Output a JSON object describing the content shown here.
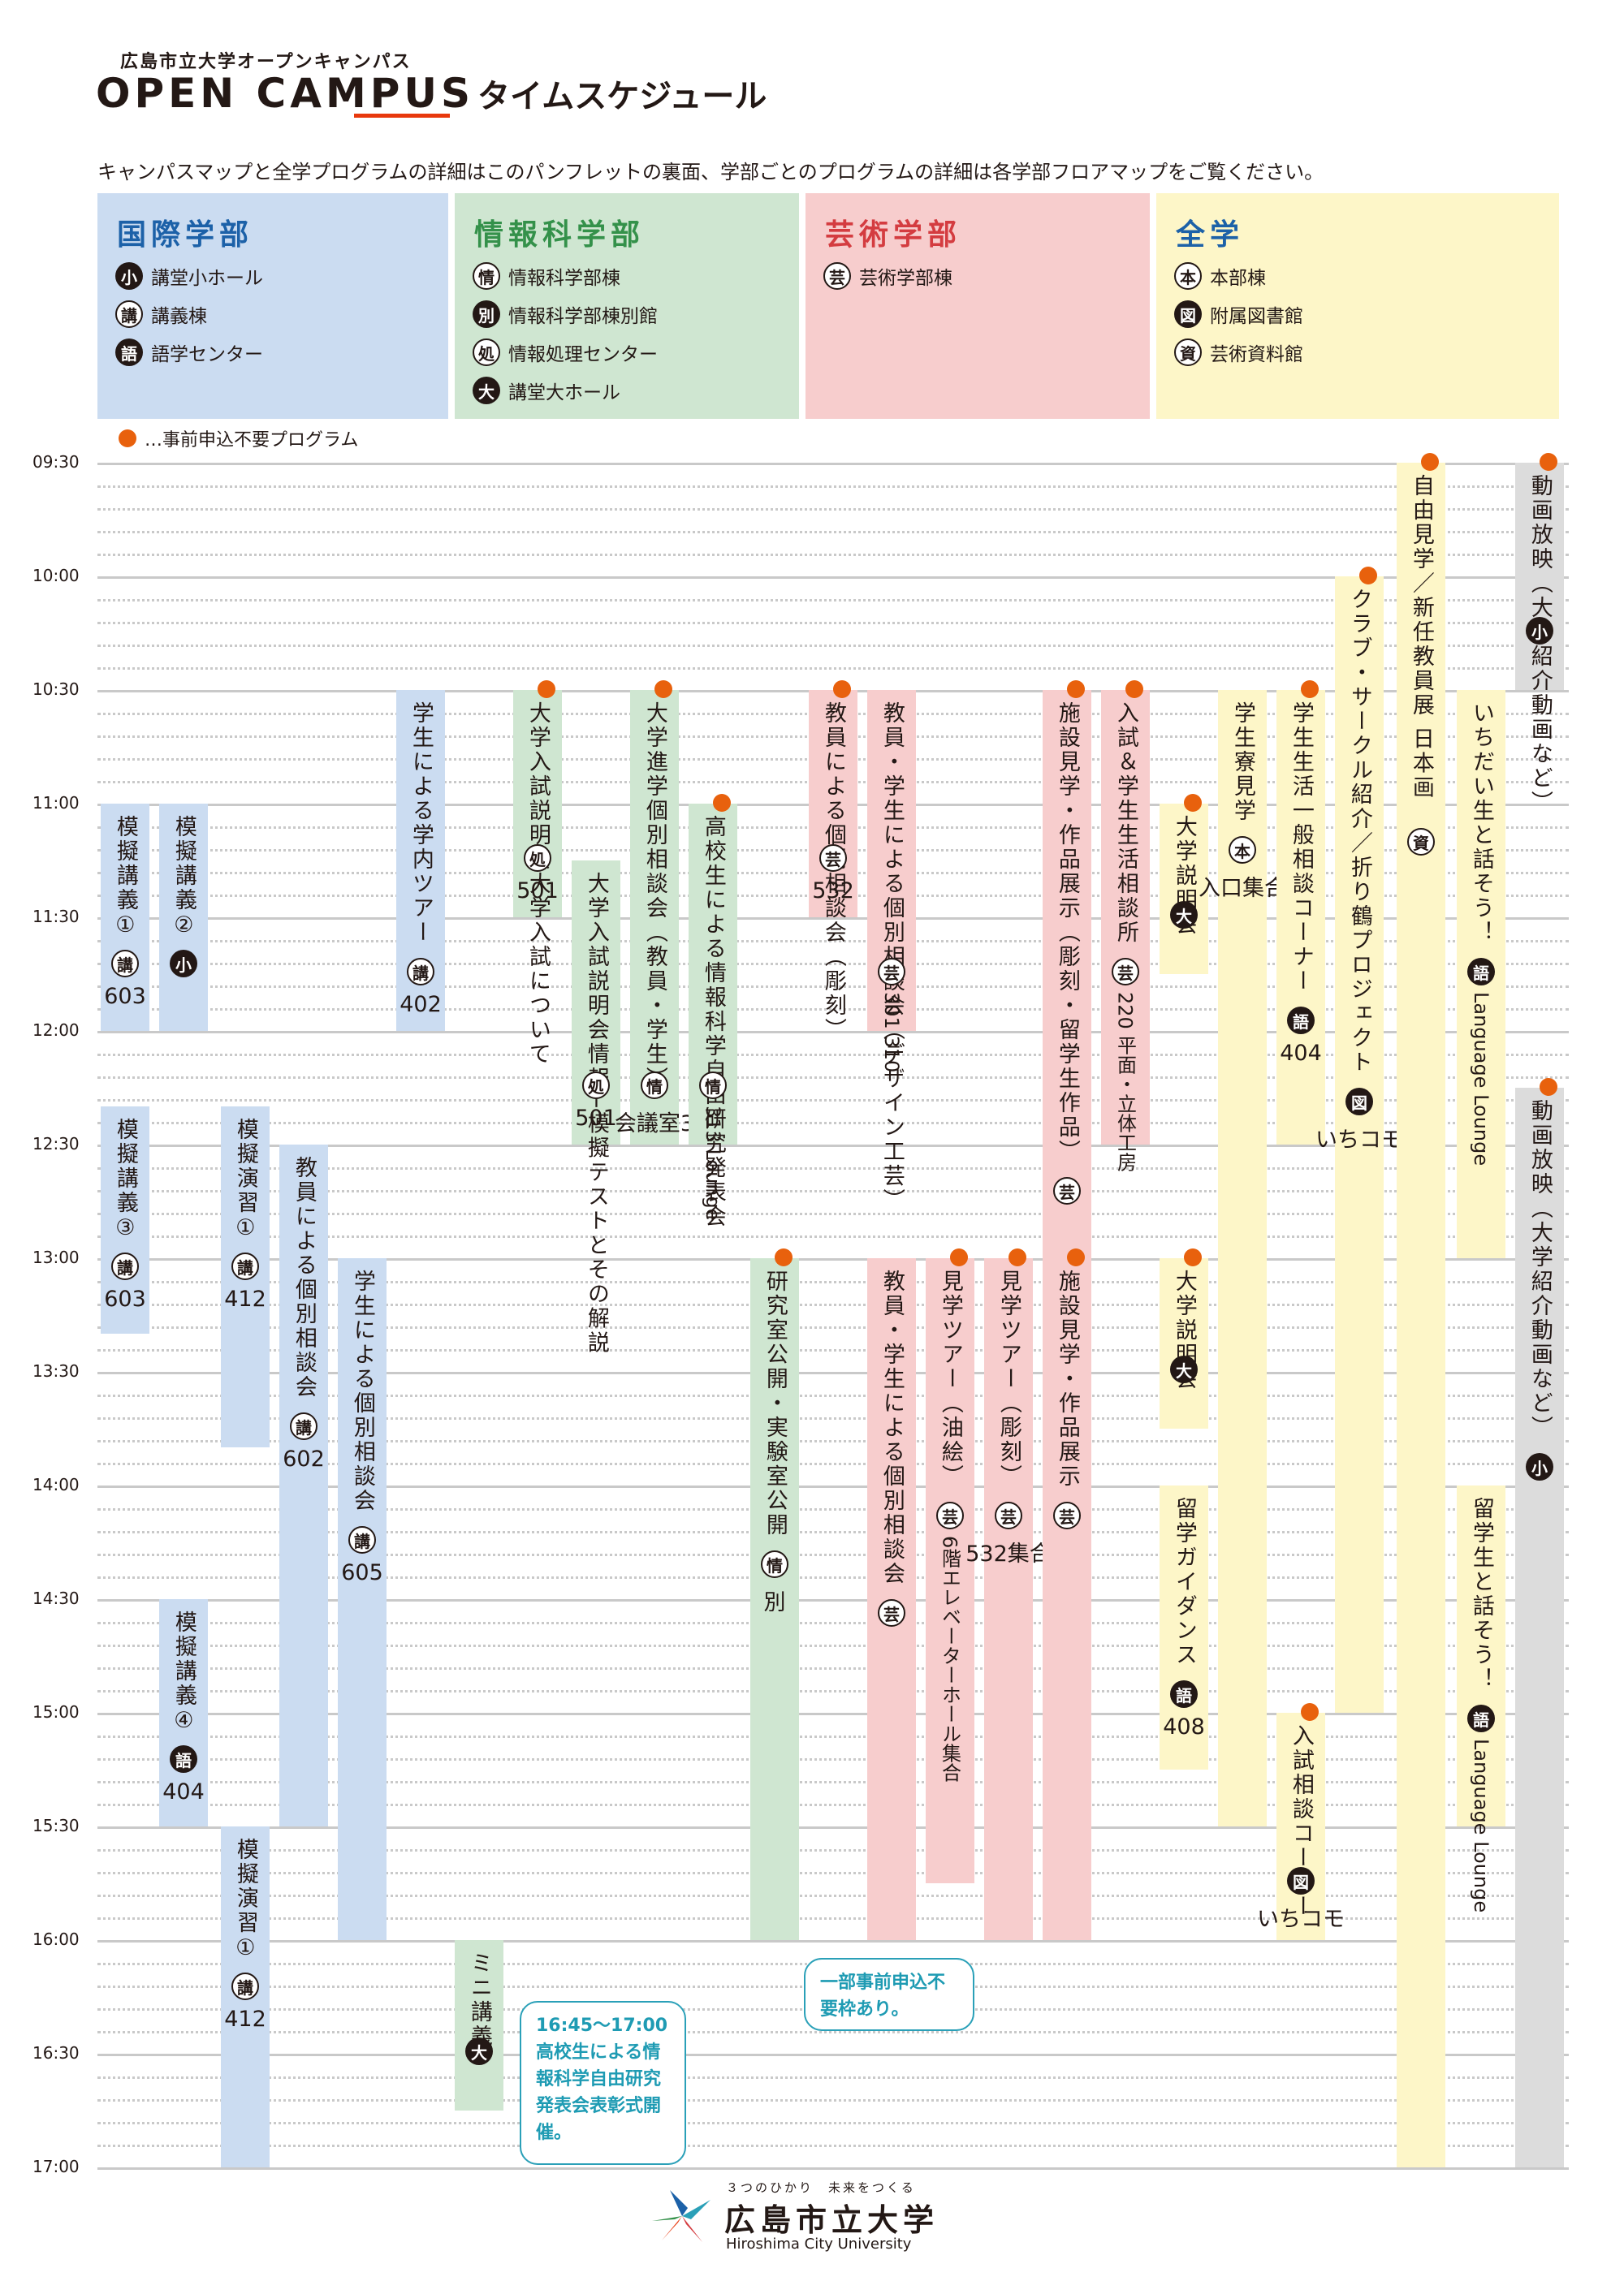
{
  "header": {
    "kicker": "広島市立大学オープンキャンパス",
    "wordmark": "OPEN CAMPUS",
    "subtitle": "タイムスケジュール",
    "note": "キャンパスマップと全学プログラムの詳細はこのパンフレットの裏面、学部ごとのプログラムの詳細は各学部フロアマップをご覧ください。"
  },
  "legend": [
    {
      "title": "国際学部",
      "color": "#1c61a8",
      "bg": "#cbdcf1",
      "items": [
        {
          "badge": "小",
          "style": "b",
          "label": "講堂小ホール"
        },
        {
          "badge": "講",
          "style": "w",
          "label": "講義棟"
        },
        {
          "badge": "語",
          "style": "b",
          "label": "語学センター"
        }
      ]
    },
    {
      "title": "情報科学部",
      "color": "#34914a",
      "bg": "#cfe6d1",
      "items": [
        {
          "badge": "情",
          "style": "w",
          "label": "情報科学部棟"
        },
        {
          "badge": "別",
          "style": "b",
          "label": "情報科学部棟別館"
        },
        {
          "badge": "処",
          "style": "w",
          "label": "情報処理センター"
        },
        {
          "badge": "大",
          "style": "b",
          "label": "講堂大ホール"
        }
      ]
    },
    {
      "title": "芸術学部",
      "color": "#d43c40",
      "bg": "#f7cdcd",
      "items": [
        {
          "badge": "芸",
          "style": "w",
          "label": "芸術学部棟"
        }
      ]
    },
    {
      "title": "全学",
      "color": "#1c61a8",
      "bg": "#fdf6c8",
      "items": [
        {
          "badge": "本",
          "style": "w",
          "label": "本部棟"
        },
        {
          "badge": "図",
          "style": "b",
          "label": "附属図書館"
        },
        {
          "badge": "資",
          "style": "w",
          "label": "芸術資料館"
        }
      ]
    }
  ],
  "dot_note": "…事前申込不要プログラム",
  "times": [
    "09:30",
    "10:00",
    "10:30",
    "11:00",
    "11:30",
    "12:00",
    "12:30",
    "13:00",
    "13:30",
    "14:00",
    "14:30",
    "15:00",
    "15:30",
    "16:00",
    "16:30",
    "17:00"
  ],
  "events": [
    {
      "c": 0,
      "s": 0,
      "start": "11:00",
      "end": "12:00",
      "cls": "intl",
      "t": "模擬講義①",
      "b": "講",
      "bs": "w",
      "r": "603"
    },
    {
      "c": 1,
      "s": 0,
      "start": "11:00",
      "end": "12:00",
      "cls": "intl",
      "t": "模擬講義②",
      "b": "小",
      "bs": "b",
      "r": ""
    },
    {
      "c": 0,
      "s": 0,
      "start": "12:20",
      "end": "13:20",
      "cls": "intl",
      "t": "模擬講義③",
      "b": "講",
      "bs": "w",
      "r": "603"
    },
    {
      "c": 1,
      "s": 0,
      "start": "14:30",
      "end": "15:30",
      "cls": "intl",
      "t": "模擬講義④",
      "b": "語",
      "bs": "b",
      "r": "404"
    },
    {
      "c": 2,
      "s": 0,
      "start": "12:20",
      "end": "13:50",
      "cls": "intl",
      "t": "模擬演習①",
      "b": "講",
      "bs": "w",
      "r": "412"
    },
    {
      "c": 2,
      "s": 0,
      "start": "15:30",
      "end": "17:00",
      "cls": "intl",
      "t": "模擬演習①",
      "b": "講",
      "bs": "w",
      "r": "412"
    },
    {
      "c": 3,
      "s": 0,
      "start": "12:30",
      "end": "15:30",
      "cls": "intl",
      "t": "教員による個別相談会",
      "b": "講",
      "bs": "w",
      "r": "602"
    },
    {
      "c": 4,
      "s": 0,
      "start": "13:00",
      "end": "16:00",
      "cls": "intl",
      "t": "学生による個別相談会",
      "b": "講",
      "bs": "w",
      "r": "605"
    },
    {
      "c": 5,
      "s": 0,
      "start": "10:30",
      "end": "12:00",
      "cls": "intl",
      "t": "学生による学内ツアー",
      "b": "講",
      "bs": "w",
      "r": "402"
    },
    {
      "c": 6,
      "s": 0,
      "start": "16:00",
      "end": "16:45",
      "cls": "info",
      "t": "ミニ講義",
      "b": "大",
      "bs": "b",
      "r": ""
    },
    {
      "c": 7,
      "s": 1,
      "start": "10:30",
      "end": "11:30",
      "cls": "info",
      "t": "大学入試説明会大学入試について",
      "b": "処",
      "bs": "w",
      "r": "501"
    },
    {
      "c": 8,
      "s": 0,
      "start": "11:15",
      "end": "12:30",
      "cls": "info",
      "t": "大学入試説明会情報−模擬テストとその解説",
      "b": "処",
      "bs": "w",
      "r": "501"
    },
    {
      "c": 9,
      "s": 1,
      "start": "10:30",
      "end": "12:30",
      "cls": "info",
      "t": "大学進学個別相談会（教員・学生）",
      "b": "情",
      "bs": "w",
      "r": "会議室3"
    },
    {
      "c": 10,
      "s": 1,
      "start": "11:00",
      "end": "12:30",
      "cls": "info",
      "t": "高校生による情報科学自由研究発表会",
      "b": "情",
      "bs": "w",
      "r": "313 Lounge"
    },
    {
      "c": 11,
      "s": 1,
      "start": "13:00",
      "end": "16:00",
      "cls": "info",
      "t": "研究室公開・実験室公開",
      "b": "情",
      "bs": "w",
      "r": "別"
    },
    {
      "c": 12,
      "s": 1,
      "start": "10:30",
      "end": "11:30",
      "cls": "art",
      "t": "教員による個別相談会（彫刻）",
      "b": "芸",
      "bs": "w",
      "r": "532"
    },
    {
      "c": 13,
      "s": 0,
      "start": "10:30",
      "end": "12:00",
      "cls": "art",
      "t": "教員・学生による個別相談会（デザイン工芸）",
      "b": "芸",
      "bs": "w",
      "r": "301 310"
    },
    {
      "c": 13,
      "s": 0,
      "start": "13:00",
      "end": "16:00",
      "cls": "art",
      "t": "教員・学生による個別相談会",
      "b": "芸",
      "bs": "w",
      "r": ""
    },
    {
      "c": 14,
      "s": 1,
      "start": "13:00",
      "end": "15:45",
      "cls": "art",
      "t": "見学ツアー（油絵）",
      "b": "芸",
      "bs": "w",
      "r": "6階エレベーターホール集合"
    },
    {
      "c": 15,
      "s": 1,
      "start": "13:00",
      "end": "16:00",
      "cls": "art",
      "t": "見学ツアー（彫刻）",
      "b": "芸",
      "bs": "w",
      "r": "532集合"
    },
    {
      "c": 16,
      "s": 1,
      "start": "10:30",
      "end": "13:00",
      "cls": "art",
      "t": "施設見学・作品展示（彫刻・留学生作品）",
      "b": "芸",
      "bs": "w",
      "r": ""
    },
    {
      "c": 16,
      "s": 1,
      "start": "13:00",
      "end": "16:00",
      "cls": "art",
      "t": "施設見学・作品展示",
      "b": "芸",
      "bs": "w",
      "r": ""
    },
    {
      "c": 17,
      "s": 1,
      "start": "10:30",
      "end": "12:30",
      "cls": "art",
      "t": "入試＆学生生活相談所",
      "b": "芸",
      "bs": "w",
      "r": "220 平面・立体工房"
    },
    {
      "c": 18,
      "s": 1,
      "start": "11:00",
      "end": "11:45",
      "cls": "all",
      "t": "大学説明会",
      "b": "大",
      "bs": "b",
      "r": ""
    },
    {
      "c": 18,
      "s": 1,
      "start": "13:00",
      "end": "13:45",
      "cls": "all",
      "t": "大学説明会",
      "b": "大",
      "bs": "b",
      "r": ""
    },
    {
      "c": 18,
      "s": 0,
      "start": "14:00",
      "end": "15:15",
      "cls": "all",
      "t": "留学ガイダンス",
      "b": "語",
      "bs": "b",
      "r": "408"
    },
    {
      "c": 19,
      "s": 0,
      "start": "10:30",
      "end": "15:30",
      "cls": "all",
      "t": "学生寮見学",
      "b": "本",
      "bs": "w",
      "r": "入口集合"
    },
    {
      "c": 20,
      "s": 1,
      "start": "10:30",
      "end": "12:30",
      "cls": "all",
      "t": "学生生活一般相談コーナー",
      "b": "語",
      "bs": "b",
      "r": "404"
    },
    {
      "c": 20,
      "s": 1,
      "start": "15:00",
      "end": "16:00",
      "cls": "all",
      "t": "入試相談コーナー",
      "b": "図",
      "bs": "b",
      "r": "いちコモ"
    },
    {
      "c": 21,
      "s": 1,
      "start": "10:00",
      "end": "15:00",
      "cls": "all",
      "t": "クラブ・サークル紹介／折り鶴プロジェクト",
      "b": "図",
      "bs": "b",
      "r": "いちコモ"
    },
    {
      "c": 22,
      "s": 1,
      "start": "09:30",
      "end": "17:00",
      "cls": "all",
      "t": "自由見学／新任教員展 日本画",
      "b": "資",
      "bs": "w",
      "r": ""
    },
    {
      "c": 23,
      "s": 0,
      "start": "10:30",
      "end": "13:00",
      "cls": "all",
      "t": "いちだい生と話そう！",
      "b": "語",
      "bs": "b",
      "r": "Language Lounge"
    },
    {
      "c": 23,
      "s": 0,
      "start": "14:00",
      "end": "15:30",
      "cls": "all",
      "t": "留学生と話そう！",
      "b": "語",
      "bs": "b",
      "r": "Language Lounge"
    },
    {
      "c": 24,
      "s": 1,
      "start": "09:30",
      "end": "10:30",
      "cls": "gray",
      "t": "動画放映（大学紹介動画など）",
      "b": "小",
      "bs": "b",
      "r": ""
    },
    {
      "c": 24,
      "s": 1,
      "start": "12:15",
      "end": "17:00",
      "cls": "gray",
      "t": "動画放映（大学紹介動画など）",
      "b": "小",
      "bs": "b",
      "r": ""
    }
  ],
  "callouts": [
    {
      "text": "一部事前申込不要枠あり。"
    },
    {
      "text": "16:45〜17:00 高校生による情報科学自由研究発表会表彰式開催。"
    }
  ],
  "footer": {
    "kicker": "３つのひかり　未来をつくる",
    "name": "広島市立大学",
    "en": "Hiroshima City University"
  }
}
